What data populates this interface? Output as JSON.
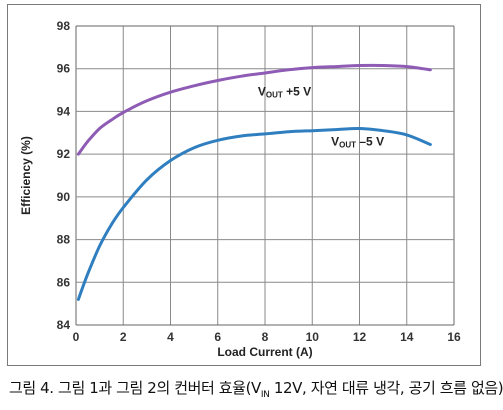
{
  "caption": {
    "prefix": "그림 4. 그림 1과 그림 2의 컨버터 효율(V",
    "sub": "IN",
    "suffix": " 12V, 자연 대류 냉각, 공기 흐름 없음)"
  },
  "chart_data": {
    "type": "line",
    "title": "",
    "xlabel": "Load Current (A)",
    "ylabel": "Efficiency (%)",
    "xlim": [
      0,
      16
    ],
    "ylim": [
      84,
      98
    ],
    "xticks": [
      "0",
      "2",
      "4",
      "6",
      "8",
      "10",
      "12",
      "14",
      "16"
    ],
    "yticks": [
      "84",
      "86",
      "88",
      "90",
      "92",
      "94",
      "96",
      "98"
    ],
    "grid": true,
    "series": [
      {
        "label_main": "V",
        "label_sub": "OUT",
        "label_tail": " +5 V",
        "color": "#8e5bb5",
        "x": [
          0.1,
          0.5,
          1,
          1.5,
          2,
          3,
          4,
          5,
          6,
          7,
          8,
          9,
          10,
          11,
          12,
          13,
          14,
          15
        ],
        "y": [
          92.0,
          92.6,
          93.2,
          93.6,
          93.95,
          94.5,
          94.9,
          95.2,
          95.45,
          95.65,
          95.8,
          95.95,
          96.05,
          96.1,
          96.15,
          96.15,
          96.1,
          95.95
        ]
      },
      {
        "label_main": "V",
        "label_sub": "OUT",
        "label_tail": " –5 V",
        "color": "#2f7fc0",
        "x": [
          0.1,
          0.5,
          1,
          1.5,
          2,
          3,
          4,
          5,
          6,
          7,
          8,
          9,
          10,
          11,
          12,
          13,
          14,
          15
        ],
        "y": [
          85.2,
          86.4,
          87.7,
          88.7,
          89.5,
          90.8,
          91.7,
          92.3,
          92.65,
          92.85,
          92.95,
          93.05,
          93.1,
          93.15,
          93.2,
          93.1,
          92.9,
          92.45
        ]
      }
    ]
  }
}
